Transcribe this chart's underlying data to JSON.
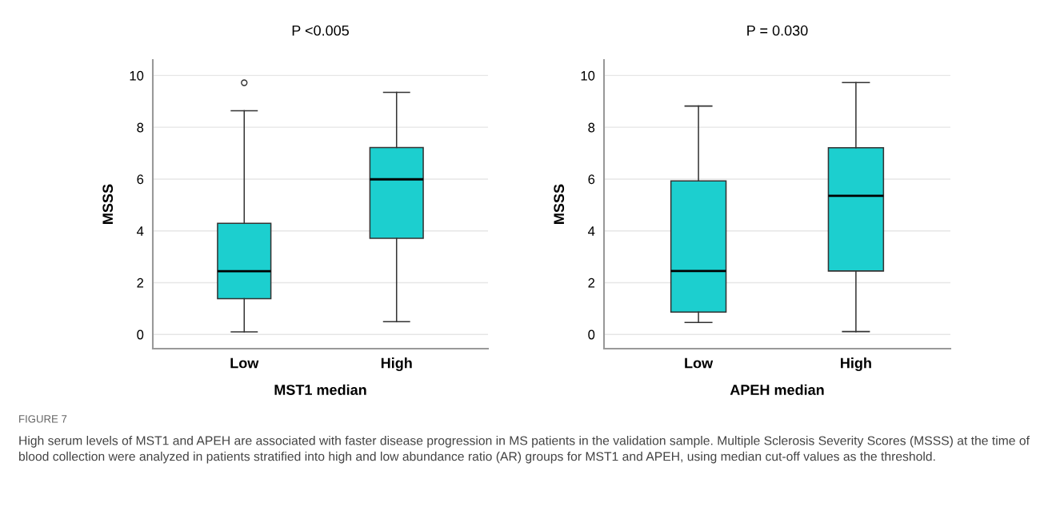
{
  "chart_data": [
    {
      "type": "box",
      "title": "P <0.005",
      "xlabel": "MST1 median",
      "ylabel": "MSSS",
      "categories": [
        "Low",
        "High"
      ],
      "color": "#1ccfcf",
      "boxes": [
        {
          "low": 0.1,
          "q1": 1.38,
          "median": 2.44,
          "q3": 4.29,
          "high": 8.64,
          "outliers": [
            9.72
          ]
        },
        {
          "low": 0.49,
          "q1": 3.71,
          "median": 5.99,
          "q3": 7.22,
          "high": 9.35
        }
      ],
      "ylim": [
        -0.55,
        10.6
      ],
      "yticks": [
        0,
        2,
        4,
        6,
        8,
        10
      ],
      "grid": "y",
      "annotations": [
        "FIGURE 7",
        "High serum levels of MST1 and APEH are associated with faster disease progression in MS patients in the validation sample. Multiple Sclerosis Severity Scores (MSSS) at the time of blood collection were analyzed in patients stratified into high and low abundance ratio (AR) groups for MST1 and APEH, using median cut-off values as the threshold."
      ]
    },
    {
      "type": "box",
      "title": "P = 0.030",
      "xlabel": "APEH median",
      "ylabel": "MSSS",
      "categories": [
        "Low",
        "High"
      ],
      "color": "#1ccfcf",
      "boxes": [
        {
          "low": 0.46,
          "q1": 0.86,
          "median": 2.45,
          "q3": 5.93,
          "high": 8.82
        },
        {
          "low": 0.11,
          "q1": 2.45,
          "median": 5.35,
          "q3": 7.21,
          "high": 9.73
        }
      ],
      "ylim": [
        -0.55,
        10.6
      ],
      "yticks": [
        0,
        2,
        4,
        6,
        8,
        10
      ],
      "grid": "y"
    }
  ]
}
